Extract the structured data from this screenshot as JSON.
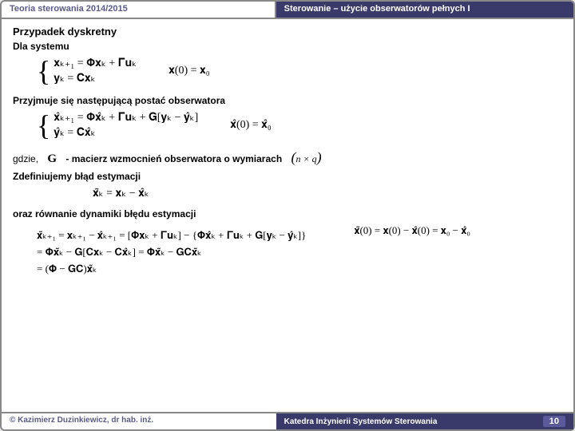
{
  "header": {
    "left": "Teoria sterowania 2014/2015",
    "right": "Sterowanie – użycie obserwatorów pełnych I"
  },
  "section": {
    "title": "Przypadek dyskretny",
    "sub": "Dla systemu"
  },
  "sys": {
    "eq1": "𝐱ₖ₊₁ = 𝚽𝐱ₖ + 𝚪𝐮ₖ",
    "eq2": "𝐲ₖ = 𝐂𝐱ₖ",
    "ic": "𝐱(0) = 𝐱₀"
  },
  "obs": {
    "intro": "Przyjmuje się następującą postać obserwatora",
    "eq1": "𝐱̂ₖ₊₁ = 𝚽𝐱̂ₖ + 𝚪𝐮ₖ + 𝐆[𝐲ₖ − 𝐲̂ₖ]",
    "eq2": "𝐲̂ₖ = 𝐂𝐱̂ₖ",
    "ic": "𝐱̂(0) = 𝐱̂₀"
  },
  "gain": {
    "prefix": "gdzie,",
    "symbol": "G",
    "text": "- macierz wzmocnień obserwatora o wymiarach",
    "dim": "(n × q)"
  },
  "err": {
    "intro": "Zdefiniujemy błąd estymacji",
    "eq": "𝐱̃ₖ = 𝐱ₖ − 𝐱̂ₖ"
  },
  "dyn": {
    "intro": "oraz  równanie dynamiki błędu estymacji",
    "line1": "𝐱̃ₖ₊₁ = 𝐱ₖ₊₁ − 𝐱̂ₖ₊₁ = [𝚽𝐱ₖ + 𝚪𝐮ₖ] − {𝚽𝐱̂ₖ + 𝚪𝐮ₖ + 𝐆[𝐲ₖ − 𝐲̂ₖ]}",
    "line2": "= 𝚽𝐱̃ₖ − 𝐆[𝐂𝐱ₖ − 𝐂𝐱̂ₖ] = 𝚽𝐱̃ₖ − 𝐆𝐂𝐱̃ₖ",
    "line3": "= (𝚽 − 𝐆𝐂)𝐱̃ₖ",
    "ic": "𝐱̃(0) = 𝐱(0) − 𝐱̂(0) = 𝐱₀ − 𝐱̂₀"
  },
  "footer": {
    "left": "© Kazimierz Duzinkiewicz, dr hab. inż.",
    "right": "Katedra Inżynierii Systemów Sterowania",
    "page": "10"
  },
  "colors": {
    "header_bg": "#3a3a6a",
    "header_text": "#5a5a8a",
    "border": "#888888"
  }
}
